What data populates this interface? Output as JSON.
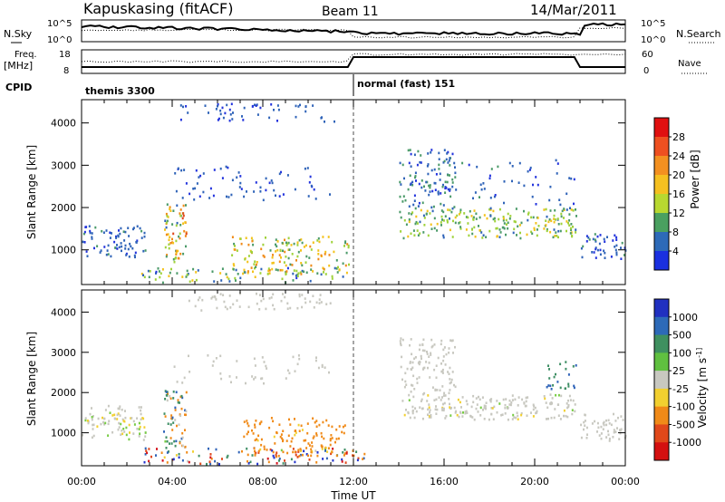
{
  "header": {
    "station": "Kapuskasing (fitACF)",
    "beam": "Beam 11",
    "date": "14/Mar/2011"
  },
  "summary_panel": {
    "left_top_label": "N.Sky",
    "left_top_ticks": [
      "10^5",
      "10^0"
    ],
    "right_top_label": "N.Search",
    "right_top_ticks": [
      "10^5",
      "10^0"
    ],
    "left_mid_label_1": "Freq.",
    "left_mid_label_2": "[MHz]",
    "left_mid_ticks": [
      "18",
      "8"
    ],
    "right_mid_label": "Nave",
    "right_mid_ticks": [
      "60",
      "0"
    ],
    "cpid_label": "CPID",
    "cpid_segments": [
      {
        "start_hour": 0,
        "end_hour": 12,
        "label": "themis 3300"
      },
      {
        "start_hour": 12,
        "end_hour": 24,
        "label": "normal (fast) 151"
      }
    ]
  },
  "colors": {
    "power": [
      "#2233dd",
      "#2f63b8",
      "#4a9a68",
      "#9fd23a",
      "#f3c21a",
      "#f08a18",
      "#e0481a",
      "#d4101a"
    ],
    "velocity": [
      "#2233cc",
      "#2f63b8",
      "#3f8f65",
      "#77cc44",
      "#c8c8c0",
      "#f2d030",
      "#f08a18",
      "#e0481a",
      "#d4101a"
    ],
    "power_colorbar_top_to_bottom": [
      "#e01010",
      "#ee5020",
      "#f39020",
      "#f5c020",
      "#b8d830",
      "#4aa060",
      "#2d6ab8",
      "#1a30e0"
    ],
    "velocity_colorbar_top_to_bottom": [
      "#2030c0",
      "#2d6ab8",
      "#3f9060",
      "#60c040",
      "#c8c8c0",
      "#f2d030",
      "#f08a18",
      "#e0481a",
      "#d41010"
    ]
  },
  "chart_data": [
    {
      "type": "heatmap",
      "name": "power",
      "xlabel": "",
      "ylabel": "Slant Range [km]",
      "xlim": [
        0,
        24
      ],
      "ylim": [
        180,
        4550
      ],
      "yticks": [
        1000,
        2000,
        3000,
        4000
      ],
      "colorbar_label": "Power [dB]",
      "colorbar_ticks": [
        "28",
        "24",
        "20",
        "16",
        "12",
        "8",
        "4"
      ],
      "clusters": [
        {
          "t0": 0.0,
          "t1": 2.8,
          "r0": 850,
          "r1": 1600,
          "v0": 4,
          "v1": 10,
          "d": 0.55
        },
        {
          "t0": 3.6,
          "t1": 4.6,
          "r0": 650,
          "r1": 2100,
          "v0": 8,
          "v1": 24,
          "d": 0.7
        },
        {
          "t0": 2.6,
          "t1": 11.6,
          "r0": 250,
          "r1": 600,
          "v0": 4,
          "v1": 18,
          "d": 0.35
        },
        {
          "t0": 6.6,
          "t1": 11.8,
          "r0": 450,
          "r1": 1350,
          "v0": 10,
          "v1": 22,
          "d": 0.5
        },
        {
          "t0": 4.0,
          "t1": 11.0,
          "r0": 2200,
          "r1": 3000,
          "v0": 4,
          "v1": 8,
          "d": 0.18
        },
        {
          "t0": 4.3,
          "t1": 11.2,
          "r0": 4050,
          "r1": 4500,
          "v0": 4,
          "v1": 8,
          "d": 0.25
        },
        {
          "t0": 14.0,
          "t1": 21.8,
          "r0": 1300,
          "r1": 2000,
          "v0": 8,
          "v1": 18,
          "d": 0.6
        },
        {
          "t0": 14.0,
          "t1": 16.5,
          "r0": 2000,
          "r1": 3400,
          "v0": 4,
          "v1": 12,
          "d": 0.45
        },
        {
          "t0": 16.0,
          "t1": 21.8,
          "r0": 2000,
          "r1": 3200,
          "v0": 4,
          "v1": 10,
          "d": 0.12
        },
        {
          "t0": 22.0,
          "t1": 24.0,
          "r0": 800,
          "r1": 1400,
          "v0": 4,
          "v1": 10,
          "d": 0.55
        }
      ]
    },
    {
      "type": "heatmap",
      "name": "velocity",
      "xlabel": "Time UT",
      "ylabel": "Slant Range [km]",
      "xlim": [
        0,
        24
      ],
      "ylim": [
        180,
        4550
      ],
      "xticks": [
        "00:00",
        "04:00",
        "08:00",
        "12:00",
        "16:00",
        "20:00",
        "00:00"
      ],
      "yticks": [
        1000,
        2000,
        3000,
        4000
      ],
      "colorbar_label": "Velocity [m s^-1]",
      "colorbar_ticks": [
        "1000",
        "500",
        "100",
        "25",
        "-25",
        "-100",
        "-500",
        "-1000"
      ],
      "clusters": [
        {
          "t0": 0.0,
          "t1": 2.8,
          "r0": 850,
          "r1": 1700,
          "v0": -40,
          "v1": 40,
          "d": 0.55
        },
        {
          "t0": 3.6,
          "t1": 4.6,
          "r0": 650,
          "r1": 2100,
          "v0": -300,
          "v1": 400,
          "d": 0.65
        },
        {
          "t0": 2.6,
          "t1": 12.5,
          "r0": 250,
          "r1": 650,
          "v0": -900,
          "v1": 900,
          "d": 0.4
        },
        {
          "t0": 7.0,
          "t1": 11.6,
          "r0": 450,
          "r1": 1400,
          "v0": -300,
          "v1": -30,
          "d": 0.45
        },
        {
          "t0": 4.5,
          "t1": 11.0,
          "r0": 4050,
          "r1": 4500,
          "v0": -20,
          "v1": 20,
          "d": 0.3
        },
        {
          "t0": 4.0,
          "t1": 11.0,
          "r0": 2200,
          "r1": 3000,
          "v0": -20,
          "v1": 20,
          "d": 0.12
        },
        {
          "t0": 14.0,
          "t1": 21.8,
          "r0": 1350,
          "r1": 2000,
          "v0": -30,
          "v1": 30,
          "d": 0.6
        },
        {
          "t0": 14.0,
          "t1": 16.5,
          "r0": 2000,
          "r1": 3400,
          "v0": -25,
          "v1": 25,
          "d": 0.45
        },
        {
          "t0": 20.5,
          "t1": 21.8,
          "r0": 2100,
          "r1": 2800,
          "v0": 30,
          "v1": 400,
          "d": 0.4
        },
        {
          "t0": 22.0,
          "t1": 24.0,
          "r0": 800,
          "r1": 1500,
          "v0": -25,
          "v1": 25,
          "d": 0.55
        }
      ]
    }
  ]
}
